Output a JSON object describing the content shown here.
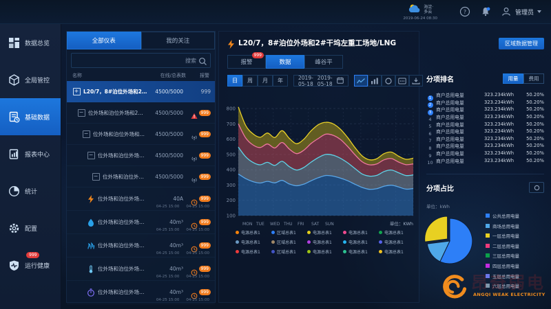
{
  "header": {
    "weather": {
      "location": "海淀·\n多云",
      "datetime": "2019-06-24 08:30"
    },
    "username": "管理员"
  },
  "sidebar": {
    "items": [
      {
        "label": "数据总览",
        "icon": "grid",
        "active": false
      },
      {
        "label": "全局管控",
        "icon": "cube",
        "active": false
      },
      {
        "label": "基础数据",
        "icon": "doc",
        "active": true
      },
      {
        "label": "报表中心",
        "icon": "report",
        "active": false
      },
      {
        "label": "统计",
        "icon": "stats",
        "active": false
      },
      {
        "label": "配置",
        "icon": "gear",
        "active": false
      },
      {
        "label": "运行健康",
        "icon": "health",
        "active": false,
        "badge": "999"
      }
    ]
  },
  "meter": {
    "tabs": [
      {
        "label": "全部仪表",
        "active": true
      },
      {
        "label": "我的关注",
        "active": false
      }
    ],
    "search_placeholder": "搜索",
    "columns": {
      "name": "名称",
      "online": "在线/总表数",
      "alarm": "报警"
    },
    "rows": [
      {
        "icon": "plus-box",
        "indent": 0,
        "name": "L20/7，8#泊位外场和2#干坞左重工场地/LNG",
        "value": "4500/5000",
        "alarm": "text",
        "alarm_text": "999",
        "selected": true
      },
      {
        "icon": "minus-box",
        "indent": 1,
        "name": "位外场和泊位外场和2#干坞左一号所重工场…",
        "value": "4500/5000",
        "alarm": "warning",
        "badge": "999"
      },
      {
        "icon": "minus-box",
        "indent": 2,
        "name": "位外场和泊位外场和2#干坞左一号所重工…",
        "value": "4500/5000",
        "alarm": "signal",
        "badge": "999"
      },
      {
        "icon": "minus-box",
        "indent": 3,
        "name": "位外场和泊位外场和2#干坞左一号所自…",
        "value": "4500/5000",
        "alarm": "signal",
        "badge": "999"
      },
      {
        "icon": "minus-box",
        "indent": 4,
        "name": "位外场和泊位外场和2#干坞左一号所…",
        "value": "4500/5000",
        "alarm": "signal",
        "badge": "999"
      },
      {
        "icon": "bolt",
        "indent": 3,
        "name": "位外场和泊位外场和2#干坞左一号所…",
        "value": "40A",
        "alarm": "clock",
        "badge": "999",
        "dates": [
          "04-25 15:00",
          "04-25 15:00"
        ]
      },
      {
        "icon": "drop",
        "indent": 3,
        "name": "位外场和泊位外场和2#干坞左一号所…",
        "value": "40m³",
        "alarm": "clock",
        "badge": "999",
        "dates": [
          "04-25 15:00",
          "04-25 15:00"
        ]
      },
      {
        "icon": "gas",
        "indent": 3,
        "name": "位外场和泊位外场和2#干坞左一号所…",
        "value": "40m³",
        "alarm": "clock",
        "badge": "999",
        "dates": [
          "04-25 15:00",
          "04-25 15:00"
        ]
      },
      {
        "icon": "thermo",
        "indent": 3,
        "name": "位外场和泊位外场和2#干坞左一号所…",
        "value": "40m³",
        "alarm": "clock",
        "badge": "999",
        "dates": [
          "04-25 15:00",
          "04-25 15:00"
        ]
      },
      {
        "icon": "timer",
        "indent": 3,
        "name": "位外场和泊位外场和2#干坞左一号所…",
        "value": "40m³",
        "alarm": "clock",
        "badge": "999",
        "dates": [
          "04-25 15:00",
          "04-25 15:00"
        ]
      }
    ]
  },
  "main": {
    "title": "L20/7，8#泊位外场和2#干坞左重工场地/LNG",
    "manage_button": "区域数据管理",
    "tabs": [
      {
        "label": "报警",
        "active": false,
        "badge": "999"
      },
      {
        "label": "数据",
        "active": true
      },
      {
        "label": "峰谷平",
        "active": false
      }
    ],
    "period_buttons": [
      {
        "label": "日",
        "active": true
      },
      {
        "label": "周",
        "active": false
      },
      {
        "label": "月",
        "active": false
      },
      {
        "label": "年",
        "active": false
      }
    ],
    "date_from": "2019-05-18",
    "date_to": "2019-05-18",
    "chart_buttons": [
      "line",
      "bar",
      "circle",
      "card",
      "download"
    ],
    "active_chart_button": 0
  },
  "chart_data": {
    "type": "area",
    "stacked": true,
    "title": "",
    "xlabel": "",
    "ylabel": "",
    "unit": "单位：KWh",
    "x_labels": [
      "MON",
      "TUE",
      "WED",
      "THU",
      "FRI",
      "SAT",
      "SUN"
    ],
    "ylim": [
      100,
      800
    ],
    "yticks": [
      100,
      200,
      300,
      400,
      500,
      600,
      700,
      800
    ],
    "grid": true,
    "note": "values are cumulative stacked line levels in KWh, 25 samples MON-SUN",
    "series": [
      {
        "name": "电源总表1-blue",
        "line_color": "#5aa7e8",
        "fill_color": "rgba(52,126,204,0.50)",
        "values": [
          372,
          342,
          322,
          313,
          324,
          314,
          330,
          307,
          295,
          306,
          328,
          348,
          362,
          358,
          345,
          328,
          305,
          284,
          272,
          276,
          292,
          299,
          287,
          273,
          277
        ]
      },
      {
        "name": "区域总表1-cyan",
        "line_color": "#5fd4e8",
        "fill_color": "rgba(160,170,182,0.45)",
        "values": [
          548,
          485,
          448,
          432,
          448,
          428,
          455,
          420,
          398,
          415,
          450,
          480,
          500,
          495,
          475,
          445,
          408,
          372,
          358,
          363,
          388,
          398,
          380,
          362,
          366
        ]
      },
      {
        "name": "电源总表1-pink",
        "line_color": "#f078a0",
        "fill_color": "rgba(190,72,86,0.55)",
        "values": [
          700,
          608,
          562,
          545,
          568,
          542,
          578,
          535,
          505,
          528,
          572,
          605,
          632,
          625,
          598,
          552,
          498,
          452,
          432,
          438,
          465,
          473,
          450,
          433,
          438
        ]
      },
      {
        "name": "电源总表1-yellow",
        "line_color": "#e8d028",
        "fill_color": "rgba(152,136,26,0.62)",
        "values": [
          810,
          690,
          635,
          612,
          640,
          610,
          655,
          605,
          570,
          600,
          655,
          695,
          710,
          700,
          665,
          610,
          545,
          490,
          465,
          472,
          505,
          515,
          488,
          468,
          475
        ]
      }
    ],
    "legend": [
      {
        "label": "电源总表1",
        "color": "#f5820b"
      },
      {
        "label": "区域总表1",
        "color": "#2d7ff7"
      },
      {
        "label": "电源总表1",
        "color": "#e3cf1b"
      },
      {
        "label": "电源总表1",
        "color": "#ef4a8e"
      },
      {
        "label": "电源总表1",
        "color": "#12a54f"
      },
      {
        "label": "电源总表1",
        "color": "#6b9ac4"
      },
      {
        "label": "区域总表1",
        "color": "#a08868"
      },
      {
        "label": "电源总表1",
        "color": "#b13fe0"
      },
      {
        "label": "电源总表1",
        "color": "#25b4f0"
      },
      {
        "label": "电源总表1",
        "color": "#5661e8"
      },
      {
        "label": "电源总表1",
        "color": "#ef3b3b"
      },
      {
        "label": "区域总表1",
        "color": "#4254c5"
      },
      {
        "label": "电源总表1",
        "color": "#9ec414"
      },
      {
        "label": "电源总表1",
        "color": "#2cc290"
      },
      {
        "label": "电源总表1",
        "color": "#f0c220"
      }
    ]
  },
  "ranking": {
    "title": "分项排名",
    "toggle": [
      {
        "label": "用量",
        "active": true
      },
      {
        "label": "费用",
        "active": false
      }
    ],
    "rows": [
      {
        "rank": 1,
        "name": "商户总用电量",
        "value": "323.234kWh",
        "percent": "50.20%"
      },
      {
        "rank": 2,
        "name": "商户总用电量",
        "value": "323.234kWh",
        "percent": "50.20%"
      },
      {
        "rank": 3,
        "name": "商户总用电量",
        "value": "323.234kWh",
        "percent": "50.20%"
      },
      {
        "rank": 4,
        "name": "商户总用电量",
        "value": "323.234kWh",
        "percent": "50.20%"
      },
      {
        "rank": 5,
        "name": "商户总用电量",
        "value": "323.234kWh",
        "percent": "50.20%"
      },
      {
        "rank": 6,
        "name": "商户总用电量",
        "value": "323.234kWh",
        "percent": "50.20%"
      },
      {
        "rank": 7,
        "name": "商户总用电量",
        "value": "323.234kWh",
        "percent": "50.20%"
      },
      {
        "rank": 8,
        "name": "商户总用电量",
        "value": "323.234kWh",
        "percent": "50.20%"
      },
      {
        "rank": 9,
        "name": "商户总用电量",
        "value": "323.234kWh",
        "percent": "50.20%"
      },
      {
        "rank": 10,
        "name": "商户总用电量",
        "value": "323.234kWh",
        "percent": "50.20%"
      }
    ]
  },
  "proportion": {
    "title": "分项占比",
    "unit": "单位：kWh",
    "pie_chart_data": {
      "type": "pie",
      "slices": [
        {
          "label": "公共总用电量",
          "value": 57,
          "color": "#2d7ff7"
        },
        {
          "label": "商场总用电量",
          "value": 16,
          "color": "#4fa8e8"
        },
        {
          "label": "一层总用电量",
          "value": 27,
          "color": "#e8d022",
          "exploded": true
        },
        {
          "label": "二层总用电量",
          "value": 0,
          "color": "#ef3a7b"
        },
        {
          "label": "三层总用电量",
          "value": 0,
          "color": "#0ba04a"
        },
        {
          "label": "四层总用电量",
          "value": 0,
          "color": "#c42be0"
        },
        {
          "label": "五层总用电量",
          "value": 0,
          "color": "#6b77e8"
        },
        {
          "label": "六层总用电量",
          "value": 0,
          "color": "#7f98ad"
        }
      ]
    }
  },
  "brand": {
    "text": "ANGQI WEAK ELECTRICITY",
    "watermark": "昂奇弱电",
    "color": "#f08c1e"
  }
}
